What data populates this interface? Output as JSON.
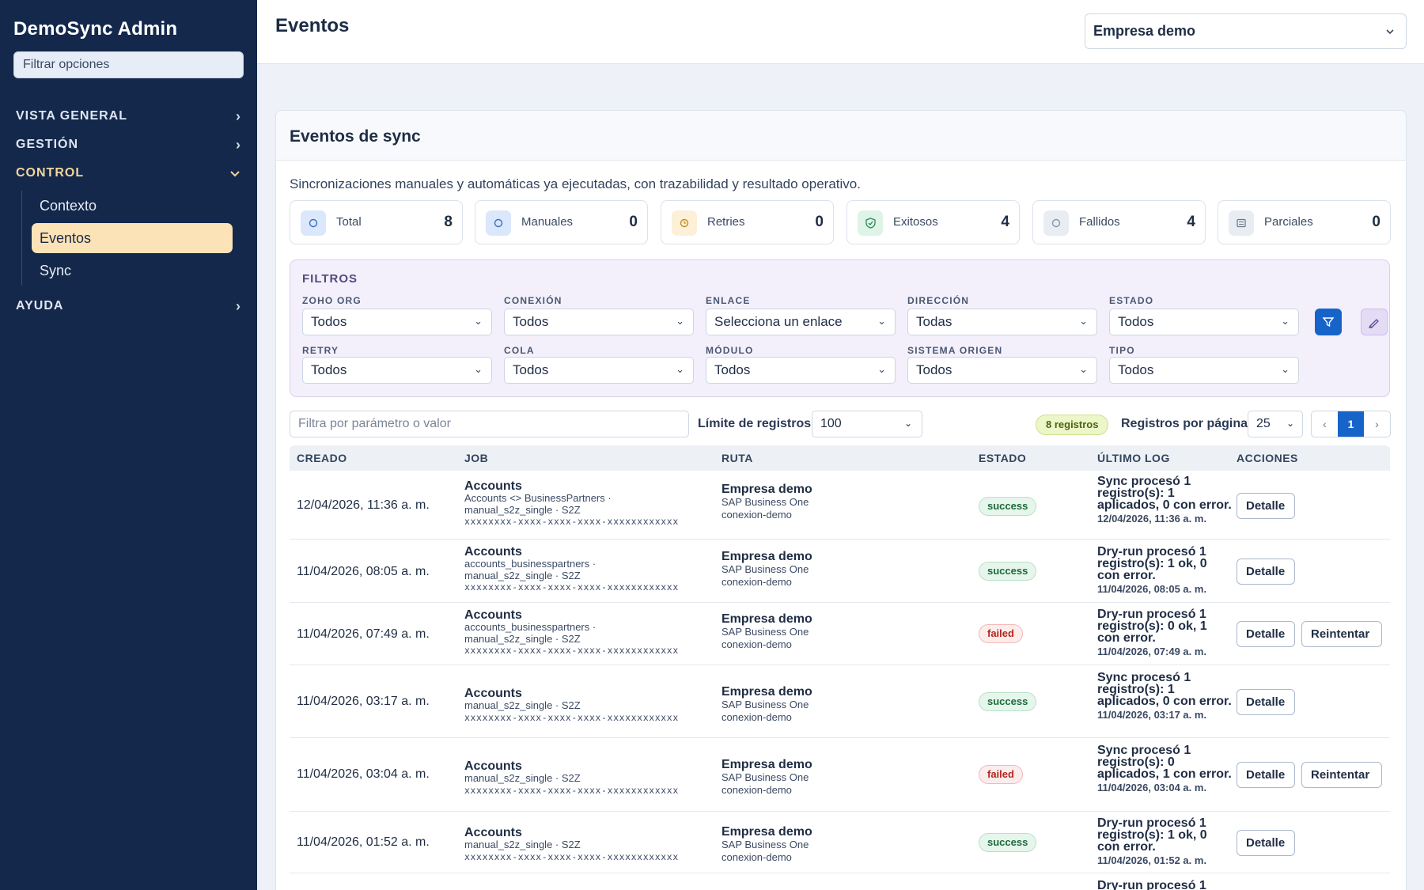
{
  "sidebar": {
    "brand": "DemoSync Admin",
    "filter_placeholder": "Filtrar opciones",
    "sections": [
      {
        "label": "VISTA GENERAL"
      },
      {
        "label": "GESTIÓN"
      },
      {
        "label": "CONTROL",
        "items": [
          {
            "label": "Contexto"
          },
          {
            "label": "Eventos"
          },
          {
            "label": "Sync"
          }
        ]
      },
      {
        "label": "AYUDA"
      }
    ]
  },
  "header": {
    "title": "Eventos",
    "company": "Empresa demo"
  },
  "card": {
    "title": "Eventos de sync",
    "description": "Sincronizaciones manuales y automáticas ya ejecutadas, con trazabilidad y resultado operativo."
  },
  "stats": [
    {
      "label": "Total",
      "value": "8",
      "icon": "circle-icon",
      "color": "#dbe7fb"
    },
    {
      "label": "Manuales",
      "value": "0",
      "icon": "circle-icon",
      "color": "#dbe7fb"
    },
    {
      "label": "Retries",
      "value": "0",
      "icon": "clock-icon",
      "color": "#fdf0d8"
    },
    {
      "label": "Exitosos",
      "value": "4",
      "icon": "shield-check-icon",
      "color": "#dff3e7"
    },
    {
      "label": "Fallidos",
      "value": "4",
      "icon": "circle-icon",
      "color": "#e8ecf3"
    },
    {
      "label": "Parciales",
      "value": "0",
      "icon": "list-icon",
      "color": "#e8ecf3"
    }
  ],
  "filters": {
    "title": "FILTROS",
    "fields": [
      {
        "label": "ZOHO ORG",
        "value": "Todos"
      },
      {
        "label": "CONEXIÓN",
        "value": "Todos"
      },
      {
        "label": "ENLACE",
        "value": "Selecciona un enlace"
      },
      {
        "label": "DIRECCIÓN",
        "value": "Todas"
      },
      {
        "label": "ESTADO",
        "value": "Todos"
      },
      {
        "label": "RETRY",
        "value": "Todos"
      },
      {
        "label": "COLA",
        "value": "Todos"
      },
      {
        "label": "MÓDULO",
        "value": "Todos"
      },
      {
        "label": "SISTEMA ORIGEN",
        "value": "Todos"
      },
      {
        "label": "TIPO",
        "value": "Todos"
      }
    ]
  },
  "toolbar": {
    "search_placeholder": "Filtra por parámetro o valor",
    "limit_label": "Límite de registros",
    "limit_value": "100",
    "count_badge": "8 registros",
    "per_page_label": "Registros por página",
    "per_page_value": "25",
    "pager": {
      "prev": "‹",
      "current": "1",
      "next": "›"
    }
  },
  "table": {
    "headers": [
      "CREADO",
      "JOB",
      "RUTA",
      "ESTADO",
      "ÚLTIMO LOG",
      "ACCIONES"
    ],
    "rows": [
      {
        "created": "12/04/2026, 11:36 a. m.",
        "job_title": "Accounts",
        "job_lines": [
          "Accounts <> BusinessPartners ·",
          "manual_s2z_single · S2Z"
        ],
        "uuid": "xxxxxxxx-xxxx-xxxx-xxxx-xxxxxxxxxxxx",
        "route_title": "Empresa demo",
        "route_system": "SAP Business One",
        "route_conn": "conexion-demo",
        "status": "success",
        "log": "Sync procesó 1 registro(s): 1 aplicados, 0 con error.",
        "log_ts": "12/04/2026, 11:36 a. m.",
        "detail": "Detalle"
      },
      {
        "created": "11/04/2026, 08:05 a. m.",
        "job_title": "Accounts",
        "job_lines": [
          "accounts_businesspartners ·",
          "manual_s2z_single · S2Z"
        ],
        "uuid": "xxxxxxxx-xxxx-xxxx-xxxx-xxxxxxxxxxxx",
        "route_title": "Empresa demo",
        "route_system": "SAP Business One",
        "route_conn": "conexion-demo",
        "status": "success",
        "log": "Dry-run procesó 1 registro(s): 1 ok, 0 con error.",
        "log_ts": "11/04/2026, 08:05 a. m.",
        "detail": "Detalle"
      },
      {
        "created": "11/04/2026, 07:49 a. m.",
        "job_title": "Accounts",
        "job_lines": [
          "accounts_businesspartners ·",
          "manual_s2z_single · S2Z"
        ],
        "uuid": "xxxxxxxx-xxxx-xxxx-xxxx-xxxxxxxxxxxx",
        "route_title": "Empresa demo",
        "route_system": "SAP Business One",
        "route_conn": "conexion-demo",
        "status": "failed",
        "log": "Dry-run procesó 1 registro(s): 0 ok, 1 con error.",
        "log_ts": "11/04/2026, 07:49 a. m.",
        "detail": "Detalle",
        "retry": "Reintentar"
      },
      {
        "created": "11/04/2026, 03:17 a. m.",
        "job_title": "Accounts",
        "job_lines": [
          "manual_s2z_single · S2Z"
        ],
        "uuid": "xxxxxxxx-xxxx-xxxx-xxxx-xxxxxxxxxxxx",
        "route_title": "Empresa demo",
        "route_system": "SAP Business One",
        "route_conn": "conexion-demo",
        "status": "success",
        "log": "Sync procesó 1 registro(s): 1 aplicados, 0 con error.",
        "log_ts": "11/04/2026, 03:17 a. m.",
        "detail": "Detalle"
      },
      {
        "created": "11/04/2026, 03:04 a. m.",
        "job_title": "Accounts",
        "job_lines": [
          "manual_s2z_single · S2Z"
        ],
        "uuid": "xxxxxxxx-xxxx-xxxx-xxxx-xxxxxxxxxxxx",
        "route_title": "Empresa demo",
        "route_system": "SAP Business One",
        "route_conn": "conexion-demo",
        "status": "failed",
        "log": "Sync procesó 1 registro(s): 0 aplicados, 1 con error.",
        "log_ts": "11/04/2026, 03:04 a. m.",
        "detail": "Detalle",
        "retry": "Reintentar"
      },
      {
        "created": "11/04/2026, 01:52 a. m.",
        "job_title": "Accounts",
        "job_lines": [
          "manual_s2z_single · S2Z"
        ],
        "uuid": "xxxxxxxx-xxxx-xxxx-xxxx-xxxxxxxxxxxx",
        "route_title": "Empresa demo",
        "route_system": "SAP Business One",
        "route_conn": "conexion-demo",
        "status": "success",
        "log": "Dry-run procesó 1 registro(s): 1 ok, 0 con error.",
        "log_ts": "11/04/2026, 01:52 a. m.",
        "detail": "Detalle"
      },
      {
        "log": "Dry-run procesó 1"
      }
    ]
  }
}
